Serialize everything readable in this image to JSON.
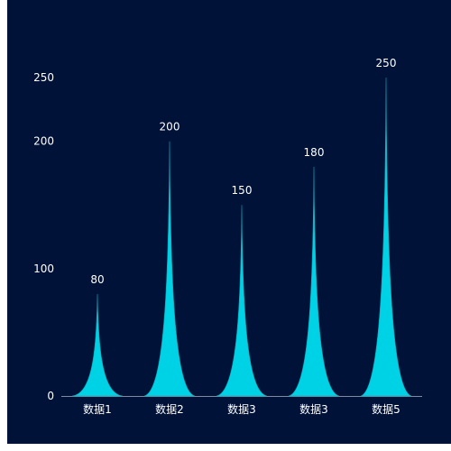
{
  "chart_data": {
    "type": "bar",
    "bar_shape": "spike",
    "categories": [
      "数据1",
      "数据2",
      "数据3",
      "数据3",
      "数据5"
    ],
    "values": [
      80,
      200,
      150,
      180,
      250
    ],
    "y_ticks": [
      0,
      100,
      200,
      250
    ],
    "ylim": [
      0,
      250
    ],
    "show_data_labels": true,
    "colors": {
      "background": "#001238",
      "bar": "#00d2e6",
      "bar_edge": "#0aa6b8",
      "axis": "#7f8aa3",
      "text": "#ffffff"
    }
  }
}
